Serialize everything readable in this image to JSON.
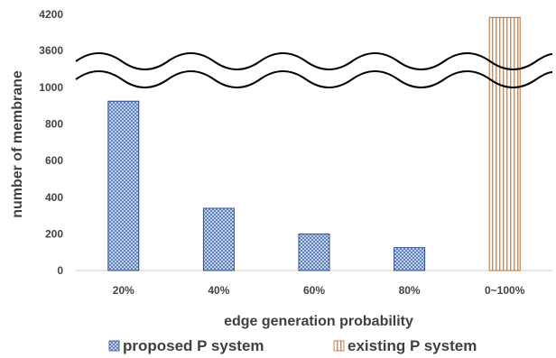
{
  "chart_data": {
    "type": "bar",
    "xlabel": "edge generation probability",
    "ylabel": "number of membrane",
    "categories": [
      "20%",
      "40%",
      "60%",
      "80%",
      "0~100%"
    ],
    "series": [
      {
        "name": "proposed P system",
        "values": [
          925,
          340,
          200,
          125,
          null
        ],
        "color": "#4a6fb0",
        "pattern": "crosshatch"
      },
      {
        "name": "existing P system",
        "values": [
          null,
          null,
          null,
          null,
          4150
        ],
        "color": "#e8823a",
        "pattern": "vertical-stripes"
      }
    ],
    "y_axis": {
      "broken": true,
      "lower_ticks": [
        "0",
        "200",
        "400",
        "600",
        "800",
        "1000"
      ],
      "upper_ticks": [
        "3600",
        "4200"
      ]
    },
    "ylim": [
      0,
      4200
    ],
    "grid": false,
    "legend": "bottom"
  }
}
